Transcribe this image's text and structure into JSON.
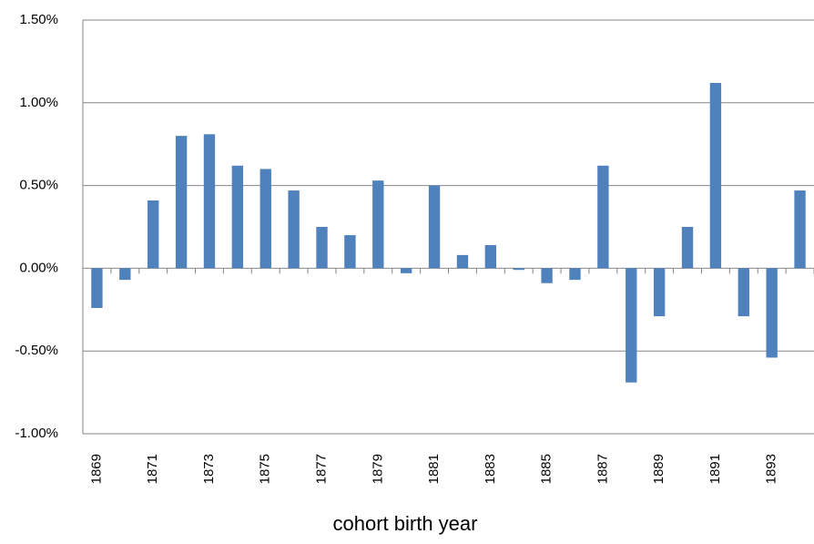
{
  "chart_data": {
    "type": "bar",
    "x_label": "cohort birth year",
    "categories": [
      "1869",
      null,
      "1871",
      null,
      "1873",
      null,
      "1875",
      null,
      "1877",
      null,
      "1879",
      null,
      "1881",
      null,
      "1883",
      null,
      "1885",
      null,
      "1887",
      null,
      "1889",
      null,
      "1891",
      null,
      "1893",
      null
    ],
    "values": [
      -0.24,
      -0.07,
      0.41,
      0.8,
      0.81,
      0.62,
      0.6,
      0.47,
      0.25,
      0.2,
      0.53,
      -0.03,
      0.5,
      0.08,
      0.14,
      -0.01,
      -0.09,
      -0.07,
      0.62,
      -0.69,
      -0.29,
      0.25,
      1.12,
      -0.29,
      -0.54,
      0.47
    ],
    "color": "#4f81bd",
    "ylim": [
      -1,
      1.5
    ],
    "yticks": [
      {
        "value": -1,
        "label": "-1.00%"
      },
      {
        "value": -0.5,
        "label": "-0.50%"
      },
      {
        "value": 0,
        "label": "0.00%"
      },
      {
        "value": 0.5,
        "label": "0.50%"
      },
      {
        "value": 1,
        "label": "1.00%"
      },
      {
        "value": 1.5,
        "label": "1.50%"
      }
    ],
    "grid": true
  }
}
